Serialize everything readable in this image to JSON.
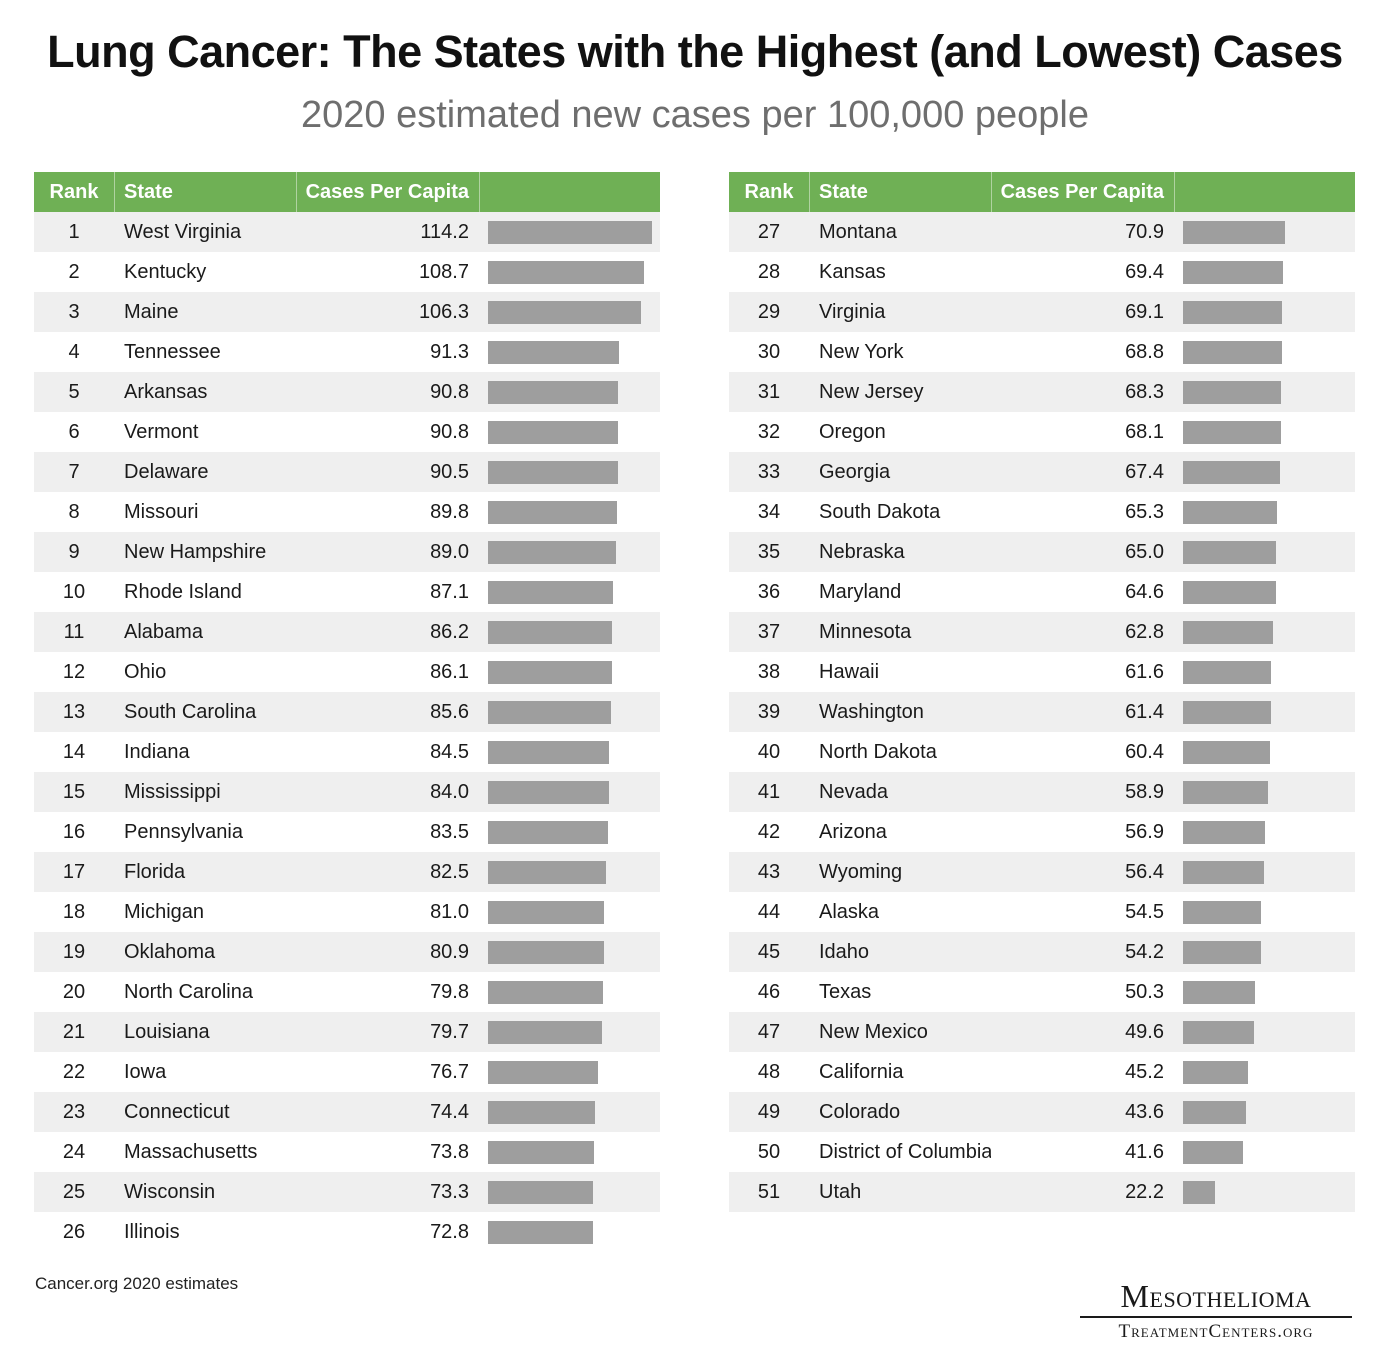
{
  "title": "Lung Cancer: The States with the Highest (and Lowest) Cases",
  "subtitle": "2020 estimated new cases per 100,000 people",
  "headers": {
    "rank": "Rank",
    "state": "State",
    "value": "Cases Per Capita"
  },
  "source": "Cancer.org 2020 estimates",
  "logo": {
    "line1": "Mesothelioma",
    "line2": "TreatmentCenters.org"
  },
  "colors": {
    "header": "#6fb055",
    "bar": "#9e9e9e",
    "stripe": "#efefef",
    "subtitle": "#6e6e6e"
  },
  "chart_data": {
    "type": "bar",
    "title": "Lung Cancer: The States with the Highest (and Lowest) Cases",
    "subtitle": "2020 estimated new cases per 100,000 people",
    "xlabel": "",
    "ylabel": "Cases Per Capita",
    "xlim": [
      0,
      114.2
    ],
    "grid": false,
    "rows": [
      {
        "rank": "1",
        "state": "West Virginia",
        "value": "114.2"
      },
      {
        "rank": "2",
        "state": "Kentucky",
        "value": "108.7"
      },
      {
        "rank": "3",
        "state": "Maine",
        "value": "106.3"
      },
      {
        "rank": "4",
        "state": "Tennessee",
        "value": "91.3"
      },
      {
        "rank": "5",
        "state": "Arkansas",
        "value": "90.8"
      },
      {
        "rank": "6",
        "state": "Vermont",
        "value": "90.8"
      },
      {
        "rank": "7",
        "state": "Delaware",
        "value": "90.5"
      },
      {
        "rank": "8",
        "state": "Missouri",
        "value": "89.8"
      },
      {
        "rank": "9",
        "state": "New Hampshire",
        "value": "89.0"
      },
      {
        "rank": "10",
        "state": "Rhode Island",
        "value": "87.1"
      },
      {
        "rank": "11",
        "state": "Alabama",
        "value": "86.2"
      },
      {
        "rank": "12",
        "state": "Ohio",
        "value": "86.1"
      },
      {
        "rank": "13",
        "state": "South Carolina",
        "value": "85.6"
      },
      {
        "rank": "14",
        "state": "Indiana",
        "value": "84.5"
      },
      {
        "rank": "15",
        "state": "Mississippi",
        "value": "84.0"
      },
      {
        "rank": "16",
        "state": "Pennsylvania",
        "value": "83.5"
      },
      {
        "rank": "17",
        "state": "Florida",
        "value": "82.5"
      },
      {
        "rank": "18",
        "state": "Michigan",
        "value": "81.0"
      },
      {
        "rank": "19",
        "state": "Oklahoma",
        "value": "80.9"
      },
      {
        "rank": "20",
        "state": "North Carolina",
        "value": "79.8"
      },
      {
        "rank": "21",
        "state": "Louisiana",
        "value": "79.7"
      },
      {
        "rank": "22",
        "state": "Iowa",
        "value": "76.7"
      },
      {
        "rank": "23",
        "state": "Connecticut",
        "value": "74.4"
      },
      {
        "rank": "24",
        "state": "Massachusetts",
        "value": "73.8"
      },
      {
        "rank": "25",
        "state": "Wisconsin",
        "value": "73.3"
      },
      {
        "rank": "26",
        "state": "Illinois",
        "value": "72.8"
      },
      {
        "rank": "27",
        "state": "Montana",
        "value": "70.9"
      },
      {
        "rank": "28",
        "state": "Kansas",
        "value": "69.4"
      },
      {
        "rank": "29",
        "state": "Virginia",
        "value": "69.1"
      },
      {
        "rank": "30",
        "state": "New York",
        "value": "68.8"
      },
      {
        "rank": "31",
        "state": "New Jersey",
        "value": "68.3"
      },
      {
        "rank": "32",
        "state": "Oregon",
        "value": "68.1"
      },
      {
        "rank": "33",
        "state": "Georgia",
        "value": "67.4"
      },
      {
        "rank": "34",
        "state": "South Dakota",
        "value": "65.3"
      },
      {
        "rank": "35",
        "state": "Nebraska",
        "value": "65.0"
      },
      {
        "rank": "36",
        "state": "Maryland",
        "value": "64.6"
      },
      {
        "rank": "37",
        "state": "Minnesota",
        "value": "62.8"
      },
      {
        "rank": "38",
        "state": "Hawaii",
        "value": "61.6"
      },
      {
        "rank": "39",
        "state": "Washington",
        "value": "61.4"
      },
      {
        "rank": "40",
        "state": "North Dakota",
        "value": "60.4"
      },
      {
        "rank": "41",
        "state": "Nevada",
        "value": "58.9"
      },
      {
        "rank": "42",
        "state": "Arizona",
        "value": "56.9"
      },
      {
        "rank": "43",
        "state": "Wyoming",
        "value": "56.4"
      },
      {
        "rank": "44",
        "state": "Alaska",
        "value": "54.5"
      },
      {
        "rank": "45",
        "state": "Idaho",
        "value": "54.2"
      },
      {
        "rank": "46",
        "state": "Texas",
        "value": "50.3"
      },
      {
        "rank": "47",
        "state": "New Mexico",
        "value": "49.6"
      },
      {
        "rank": "48",
        "state": "California",
        "value": "45.2"
      },
      {
        "rank": "49",
        "state": "Colorado",
        "value": "43.6"
      },
      {
        "rank": "50",
        "state": "District of Columbia",
        "value": "41.6"
      },
      {
        "rank": "51",
        "state": "Utah",
        "value": "22.2"
      }
    ]
  }
}
